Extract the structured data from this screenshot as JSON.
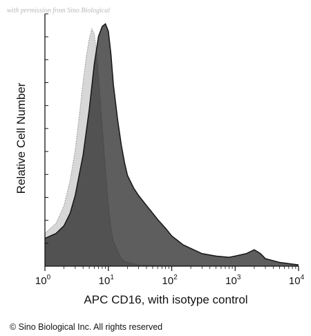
{
  "watermark": "with permission from Sino Biological",
  "copyright": "© Sino Biological Inc. All rights reserved",
  "chart_data": {
    "type": "area",
    "title": "",
    "xlabel": "APC CD16, with isotype control",
    "ylabel": "Relative Cell Number",
    "xscale": "log",
    "xlim": [
      1,
      10000
    ],
    "xticks": [
      {
        "base": "10",
        "exp": "0",
        "value": 1
      },
      {
        "base": "10",
        "exp": "1",
        "value": 10
      },
      {
        "base": "10",
        "exp": "2",
        "value": 100
      },
      {
        "base": "10",
        "exp": "3",
        "value": 1000
      },
      {
        "base": "10",
        "exp": "4",
        "value": 10000
      }
    ],
    "ylim": [
      0,
      100
    ],
    "grid": false,
    "legend": "none",
    "series": [
      {
        "color": "#a6a6a6",
        "x": [
          1,
          1.5,
          2,
          2.5,
          3,
          3.5,
          4,
          4.5,
          5,
          5.5,
          6,
          6.5,
          7,
          8,
          9,
          10,
          11,
          12,
          14,
          16,
          18,
          20,
          25,
          30,
          40,
          60,
          100,
          1000,
          10000
        ],
        "y": [
          13,
          17,
          24,
          34,
          46,
          60,
          73,
          83,
          90,
          94,
          92,
          85,
          75,
          55,
          38,
          24,
          15,
          10,
          6,
          3,
          2,
          1.5,
          1,
          0.5,
          0.4,
          0.3,
          0.2,
          0.1,
          0
        ]
      },
      {
        "color": "#1a1a1a",
        "x": [
          1,
          1.5,
          2,
          2.5,
          3,
          4,
          5,
          6,
          7,
          8,
          9,
          10,
          11,
          12,
          14,
          16,
          18,
          20,
          25,
          30,
          40,
          50,
          60,
          80,
          100,
          150,
          200,
          300,
          500,
          800,
          1000,
          1500,
          2000,
          2500,
          3000,
          5000,
          10000
        ],
        "y": [
          11,
          13,
          16,
          21,
          28,
          44,
          62,
          80,
          91,
          95,
          96,
          93,
          84,
          72,
          58,
          48,
          41,
          36,
          31,
          28,
          24,
          21,
          18.5,
          15,
          12,
          8.5,
          7,
          5,
          4,
          3.5,
          4,
          5,
          6.5,
          5,
          3,
          1.5,
          0.5
        ]
      }
    ]
  }
}
